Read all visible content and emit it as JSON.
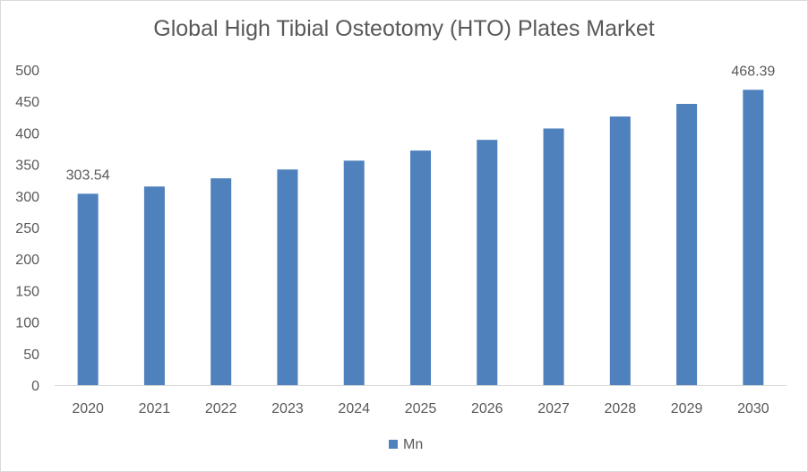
{
  "chart_data": {
    "type": "bar",
    "title": "Global High Tibial Osteotomy (HTO) Plates Market",
    "categories": [
      "2020",
      "2021",
      "2022",
      "2023",
      "2024",
      "2025",
      "2026",
      "2027",
      "2028",
      "2029",
      "2030"
    ],
    "series": [
      {
        "name": "Mn",
        "values": [
          303.54,
          315,
          328,
          342,
          356,
          372,
          389,
          407,
          426,
          446,
          468.39
        ],
        "color": "#4f81bd"
      }
    ],
    "data_labels": {
      "2020": "303.54",
      "2030": "468.39"
    },
    "ylim": [
      0,
      500
    ],
    "yticks": [
      0,
      50,
      100,
      150,
      200,
      250,
      300,
      350,
      400,
      450,
      500
    ],
    "xlabel": "",
    "ylabel": "",
    "grid": false,
    "legend_position": "bottom"
  }
}
